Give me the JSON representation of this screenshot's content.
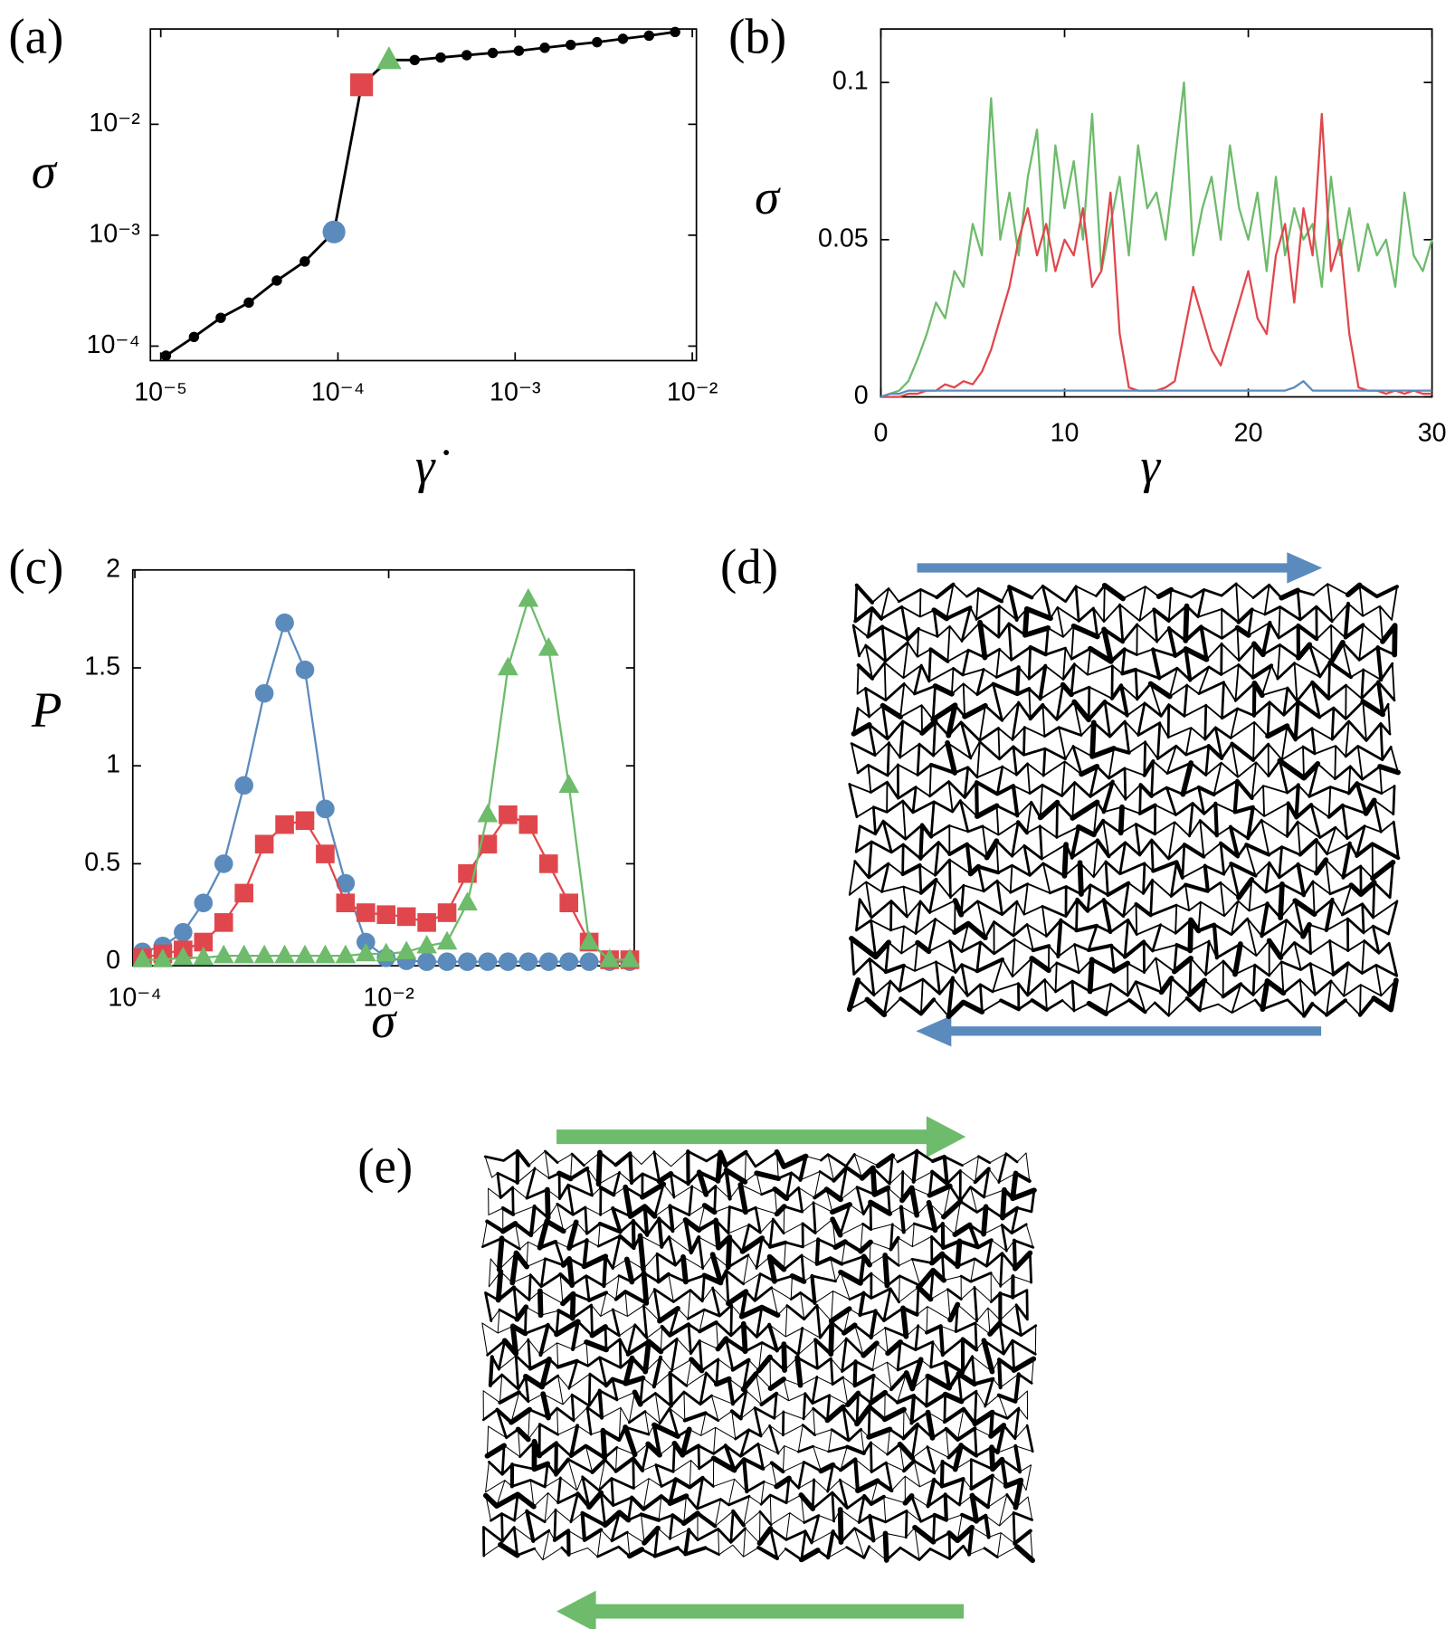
{
  "chart_data": [
    {
      "type": "line",
      "label": "(a)",
      "xlabel": "γ̇",
      "ylabel": "σ",
      "xscale": "log",
      "yscale": "log",
      "xlim": [
        8.74e-06,
        0.01055
      ],
      "ylim": [
        7.4e-05,
        0.0723
      ],
      "xticks": [
        {
          "value": 1e-05,
          "label": "10⁻⁵"
        },
        {
          "value": 0.0001,
          "label": "10⁻⁴"
        },
        {
          "value": 0.001,
          "label": "10⁻³"
        },
        {
          "value": 0.01,
          "label": "10⁻²"
        }
      ],
      "yticks": [
        {
          "value": 0.0001,
          "label": "10⁻⁴"
        },
        {
          "value": 0.001,
          "label": "10⁻³"
        },
        {
          "value": 0.01,
          "label": "10⁻²"
        }
      ],
      "series": [
        {
          "color": "#000000",
          "marker": "dot",
          "x": [
            1.07e-05,
            1.54e-05,
            2.18e-05,
            3.14e-05,
            4.52e-05,
            6.5e-05,
            9.5e-05,
            0.000136,
            0.000194,
            0.000271,
            0.00038,
            0.000533,
            0.000748,
            0.00105,
            0.00147,
            0.00206,
            0.0029,
            0.00406,
            0.0057,
            0.008
          ],
          "values": [
            8.2e-05,
            0.000121,
            0.00018,
            0.000247,
            0.00039,
            0.00058,
            0.00107,
            0.0227,
            0.038,
            0.038,
            0.04,
            0.042,
            0.044,
            0.046,
            0.049,
            0.052,
            0.055,
            0.059,
            0.063,
            0.068
          ]
        },
        {
          "color": "#5b8bbd",
          "marker": "circle",
          "x": [
            9.5e-05
          ],
          "values": [
            0.00107
          ]
        },
        {
          "color": "#e0474c",
          "marker": "square",
          "x": [
            0.000136
          ],
          "values": [
            0.0227
          ]
        },
        {
          "color": "#6dbb6b",
          "marker": "triangle",
          "x": [
            0.000194
          ],
          "values": [
            0.038
          ]
        }
      ]
    },
    {
      "type": "line",
      "label": "(b)",
      "xlabel": "γ",
      "ylabel": "σ",
      "xlim": [
        0,
        30
      ],
      "ylim": [
        0,
        0.117
      ],
      "xticks": [
        0,
        10,
        20,
        30
      ],
      "yticks": [
        0,
        0.05,
        0.1
      ],
      "x": [
        0,
        0.5,
        1,
        1.5,
        2,
        2.5,
        3,
        3.5,
        4,
        4.5,
        5,
        5.5,
        6,
        6.5,
        7,
        7.5,
        8,
        8.5,
        9,
        9.5,
        10,
        10.5,
        11,
        11.5,
        12,
        12.5,
        13,
        13.5,
        14,
        14.5,
        15,
        15.5,
        16,
        16.5,
        17,
        17.5,
        18,
        18.5,
        19,
        19.5,
        20,
        20.5,
        21,
        21.5,
        22,
        22.5,
        23,
        23.5,
        24,
        24.5,
        25,
        25.5,
        26,
        26.5,
        27,
        27.5,
        28,
        28.5,
        29,
        29.5,
        30
      ],
      "series": [
        {
          "color": "#6dbb6b",
          "values": [
            0,
            0.001,
            0.002,
            0.005,
            0.012,
            0.02,
            0.03,
            0.025,
            0.04,
            0.035,
            0.055,
            0.045,
            0.095,
            0.05,
            0.065,
            0.045,
            0.07,
            0.085,
            0.04,
            0.08,
            0.06,
            0.075,
            0.05,
            0.09,
            0.04,
            0.055,
            0.07,
            0.045,
            0.08,
            0.06,
            0.065,
            0.05,
            0.075,
            0.1,
            0.045,
            0.06,
            0.07,
            0.05,
            0.08,
            0.06,
            0.05,
            0.065,
            0.04,
            0.07,
            0.045,
            0.06,
            0.05,
            0.055,
            0.035,
            0.07,
            0.045,
            0.06,
            0.04,
            0.055,
            0.045,
            0.05,
            0.035,
            0.065,
            0.045,
            0.04,
            0.05
          ]
        },
        {
          "color": "#e0474c",
          "values": [
            0,
            0,
            0,
            0.001,
            0.001,
            0.002,
            0.002,
            0.004,
            0.003,
            0.005,
            0.004,
            0.008,
            0.015,
            0.025,
            0.035,
            0.05,
            0.06,
            0.045,
            0.055,
            0.04,
            0.05,
            0.045,
            0.06,
            0.035,
            0.04,
            0.065,
            0.02,
            0.003,
            0.002,
            0.002,
            0.002,
            0.003,
            0.005,
            0.02,
            0.035,
            0.025,
            0.015,
            0.01,
            0.02,
            0.03,
            0.04,
            0.025,
            0.02,
            0.045,
            0.055,
            0.03,
            0.06,
            0.045,
            0.09,
            0.04,
            0.05,
            0.02,
            0.003,
            0.002,
            0.002,
            0.001,
            0.002,
            0.001,
            0.002,
            0.001,
            0.001
          ]
        },
        {
          "color": "#5b8bbd",
          "values": [
            0,
            0.001,
            0.001,
            0.002,
            0.002,
            0.002,
            0.002,
            0.002,
            0.002,
            0.002,
            0.002,
            0.002,
            0.002,
            0.002,
            0.002,
            0.002,
            0.002,
            0.002,
            0.002,
            0.002,
            0.002,
            0.002,
            0.002,
            0.002,
            0.002,
            0.002,
            0.002,
            0.002,
            0.002,
            0.002,
            0.002,
            0.002,
            0.002,
            0.002,
            0.002,
            0.002,
            0.002,
            0.002,
            0.002,
            0.002,
            0.002,
            0.002,
            0.002,
            0.002,
            0.002,
            0.003,
            0.005,
            0.002,
            0.002,
            0.002,
            0.002,
            0.002,
            0.002,
            0.002,
            0.002,
            0.002,
            0.002,
            0.002,
            0.002,
            0.002,
            0.002
          ]
        }
      ]
    },
    {
      "type": "line",
      "label": "(c)",
      "xlabel": "σ",
      "ylabel": "P",
      "xscale": "log",
      "xlim": [
        9.63e-05,
        0.861
      ],
      "ylim": [
        -0.021,
        2
      ],
      "xticks": [
        {
          "value": 0.0001,
          "label": "10⁻⁴"
        },
        {
          "value": 0.01,
          "label": "10⁻²"
        }
      ],
      "yticks": [
        0,
        0.5,
        1,
        1.5,
        2
      ],
      "x": [
        0.0001148,
        0.000166,
        0.0002399,
        0.0003467,
        0.0005012,
        0.0007244,
        0.001047,
        0.001514,
        0.002188,
        0.003162,
        0.004571,
        0.006607,
        0.00955,
        0.0138,
        0.01995,
        0.02884,
        0.04169,
        0.06026,
        0.0871,
        0.1259,
        0.182,
        0.263,
        0.38,
        0.55,
        0.794
      ],
      "series": [
        {
          "color": "#5b8bbd",
          "marker": "circle",
          "values": [
            0.05,
            0.08,
            0.15,
            0.3,
            0.5,
            0.9,
            1.37,
            1.73,
            1.49,
            0.78,
            0.4,
            0.1,
            0.02,
            0.005,
            0,
            0,
            0,
            0,
            0,
            0,
            0,
            0,
            0,
            0,
            0
          ]
        },
        {
          "color": "#e0474c",
          "marker": "square",
          "values": [
            0.02,
            0.04,
            0.06,
            0.1,
            0.2,
            0.35,
            0.6,
            0.7,
            0.72,
            0.55,
            0.3,
            0.25,
            0.24,
            0.23,
            0.2,
            0.25,
            0.45,
            0.6,
            0.75,
            0.7,
            0.5,
            0.3,
            0.1,
            0.01,
            0.01
          ]
        },
        {
          "color": "#6dbb6b",
          "marker": "triangle",
          "values": [
            0.01,
            0.01,
            0.02,
            0.02,
            0.03,
            0.03,
            0.03,
            0.03,
            0.03,
            0.03,
            0.03,
            0.04,
            0.04,
            0.05,
            0.08,
            0.1,
            0.3,
            0.75,
            1.5,
            1.85,
            1.6,
            0.9,
            0.1,
            0.01,
            0.01
          ]
        }
      ]
    }
  ],
  "images": [
    {
      "label": "(d)"
    },
    {
      "label": "(e)"
    }
  ]
}
